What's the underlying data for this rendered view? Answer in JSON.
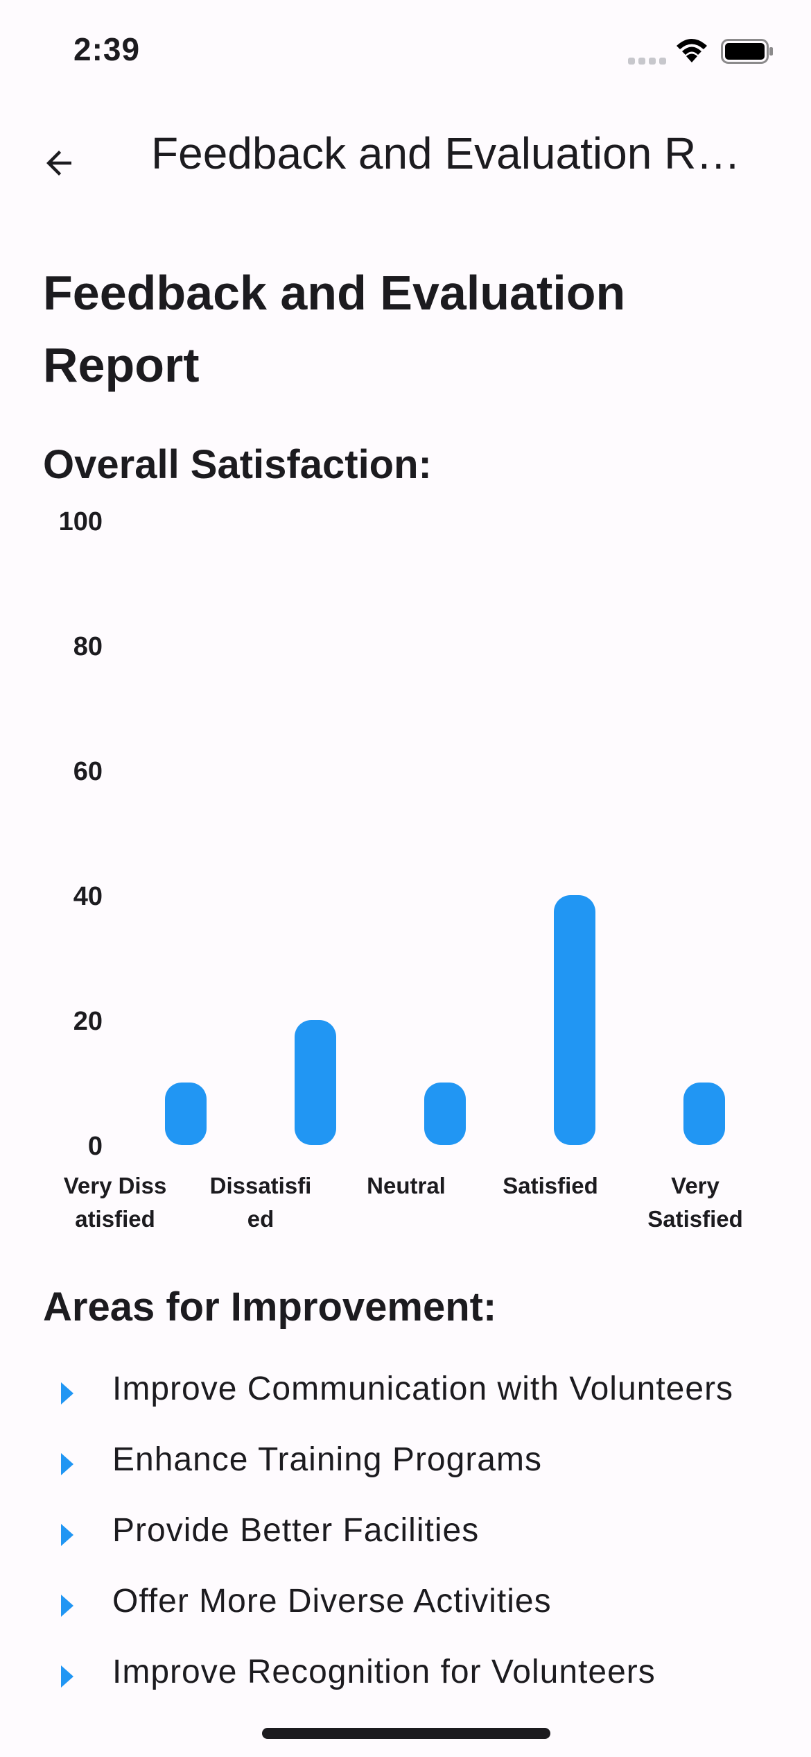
{
  "status_bar": {
    "time": "2:39"
  },
  "app_bar": {
    "back_icon": "arrow-left-icon",
    "title": "Feedback and Evaluation R…"
  },
  "report": {
    "heading": "Feedback and Evaluation Report"
  },
  "satisfaction": {
    "heading": "Overall Satisfaction:"
  },
  "chart_data": {
    "type": "bar",
    "categories": [
      "Very Dissatisfied",
      "Dissatisfied",
      "Neutral",
      "Satisfied",
      "Very Satisfied"
    ],
    "category_label_lines": [
      [
        "Very Diss",
        "atisfied"
      ],
      [
        "Dissatisfi",
        "ed"
      ],
      [
        "Neutral"
      ],
      [
        "Satisfied"
      ],
      [
        "Very",
        "Satisfied"
      ]
    ],
    "values": [
      10,
      20,
      10,
      40,
      10
    ],
    "ylim": [
      0,
      100
    ],
    "yticks": [
      "0",
      "20",
      "40",
      "60",
      "80",
      "100"
    ],
    "bar_color": "#2196f3",
    "grid": false,
    "title": "",
    "xlabel": "",
    "ylabel": ""
  },
  "improvement": {
    "heading": "Areas for Improvement:",
    "bullet_icon": "arrow-right-icon",
    "bullet_color": "#2196f3",
    "items": [
      "Improve Communication with Volunteers",
      "Enhance Training Programs",
      "Provide Better Facilities",
      "Offer More Diverse Activities",
      "Improve Recognition for Volunteers"
    ]
  }
}
